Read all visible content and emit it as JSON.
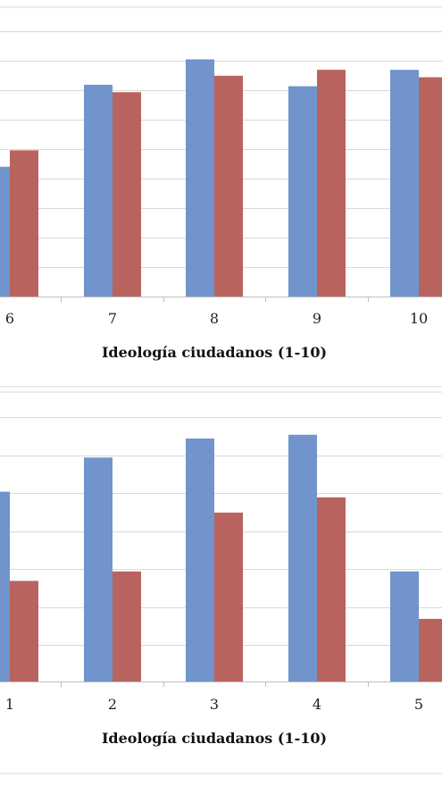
{
  "chart_data": [
    {
      "type": "bar",
      "categories": [
        "6",
        "7",
        "8",
        "9",
        "10"
      ],
      "series": [
        {
          "values": [
            4.35,
            7.1,
            7.95,
            7.05,
            7.6
          ],
          "color": "#7094cb"
        },
        {
          "values": [
            4.9,
            6.85,
            7.4,
            7.6,
            7.35
          ],
          "color": "#b9635f"
        }
      ],
      "title": "",
      "xlabel": "Ideología ciudadanos (1-10)",
      "ylabel": "",
      "ylim": [
        0,
        10
      ],
      "grid": true
    },
    {
      "type": "bar",
      "categories": [
        "1",
        "2",
        "3",
        "4",
        "5"
      ],
      "series": [
        {
          "values": [
            5.0,
            5.9,
            6.4,
            6.5,
            2.9
          ],
          "color": "#7094cb"
        },
        {
          "values": [
            2.65,
            2.9,
            4.45,
            4.85,
            1.65
          ],
          "color": "#b9635f"
        }
      ],
      "title": "",
      "xlabel": "Ideología ciudadanos (1-10)",
      "ylabel": "",
      "ylim": [
        0,
        10
      ],
      "grid": true
    }
  ]
}
